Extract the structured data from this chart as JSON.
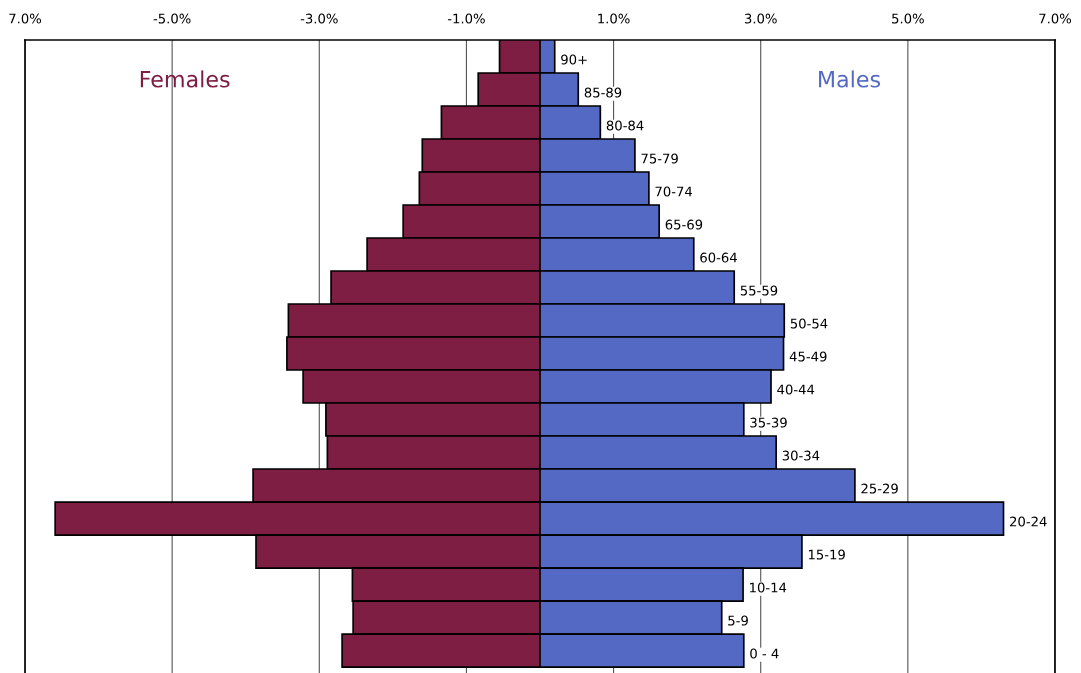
{
  "chart_data": {
    "type": "bar",
    "orientation": "horizontal",
    "stacked": true,
    "categories": [
      "90+",
      "85-89",
      "80-84",
      "75-79",
      "70-74",
      "65-69",
      "60-64",
      "55-59",
      "50-54",
      "45-49",
      "40-44",
      "35-39",
      "30-34",
      "25-29",
      "20-24",
      "15-19",
      "10-14",
      "5-9",
      "0 - 4"
    ],
    "series": [
      {
        "name": "Females",
        "color": "#7d1e42",
        "values": [
          -0.55,
          -0.84,
          -1.34,
          -1.6,
          -1.64,
          -1.86,
          -2.35,
          -2.84,
          -3.42,
          -3.44,
          -3.22,
          -2.91,
          -2.89,
          -3.9,
          -6.59,
          -3.86,
          -2.55,
          -2.54,
          -2.69
        ]
      },
      {
        "name": "Males",
        "color": "#5469c4",
        "values": [
          0.2,
          0.52,
          0.82,
          1.29,
          1.48,
          1.62,
          2.09,
          2.64,
          3.32,
          3.31,
          3.14,
          2.77,
          3.21,
          4.28,
          6.3,
          3.56,
          2.76,
          2.47,
          2.77
        ]
      }
    ],
    "xlim": [
      -7,
      7
    ],
    "xticks": [
      {
        "value": -7,
        "label": "7.0%"
      },
      {
        "value": -5,
        "label": "-5.0%"
      },
      {
        "value": -3,
        "label": "-3.0%"
      },
      {
        "value": -1,
        "label": "-1.0%"
      },
      {
        "value": 1,
        "label": "1.0%"
      },
      {
        "value": 3,
        "label": "3.0%"
      },
      {
        "value": 5,
        "label": "5.0%"
      },
      {
        "value": 7,
        "label": "7.0%"
      }
    ],
    "grid": "x",
    "tick_labels": "x",
    "legend": false
  }
}
